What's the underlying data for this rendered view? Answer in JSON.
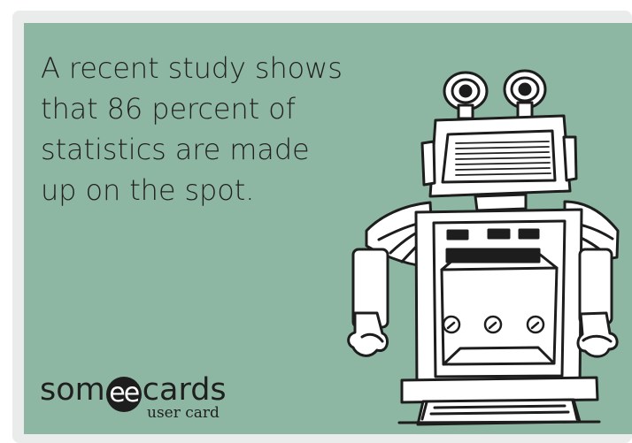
{
  "card": {
    "headline_lines": [
      "A recent study shows",
      "that 86 percent of",
      "statistics are made",
      "up on the spot."
    ],
    "brand": {
      "prefix": "som",
      "mark": "ee",
      "suffix": "cards",
      "subtitle": "user card"
    },
    "illustration": "robot-icon"
  },
  "colors": {
    "background": "#8eb7a3",
    "ink": "#222222",
    "outer": "#ffffff"
  }
}
